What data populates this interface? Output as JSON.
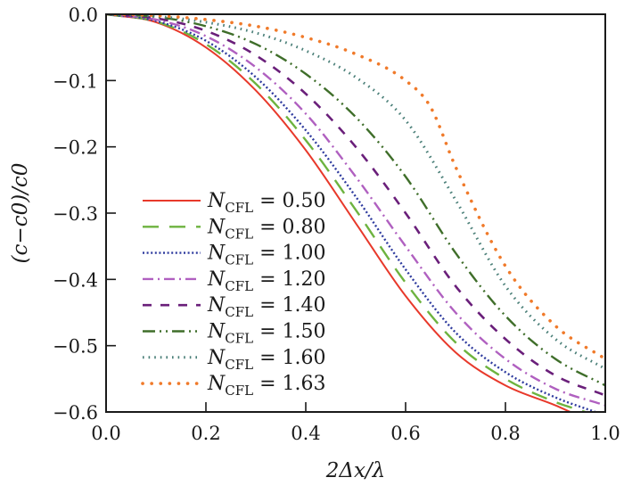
{
  "chart_data": {
    "type": "line",
    "title": "",
    "xlabel": "2Δx/λ",
    "ylabel": "(c−c0)/c0",
    "xlim": [
      0.0,
      1.0
    ],
    "ylim": [
      -0.6,
      0.0
    ],
    "grid": false,
    "legend_position": "center-left",
    "x_ticks": [
      "0.0",
      "0.2",
      "0.4",
      "0.6",
      "0.8",
      "1.0"
    ],
    "y_ticks": [
      "0.0",
      "−0.1",
      "−0.2",
      "−0.3",
      "−0.4",
      "−0.5",
      "−0.6"
    ],
    "x_tick_values": [
      0.0,
      0.2,
      0.4,
      0.6,
      0.8,
      1.0
    ],
    "y_tick_values": [
      0.0,
      -0.1,
      -0.2,
      -0.3,
      -0.4,
      -0.5,
      -0.6
    ],
    "legend_symbol": "N",
    "legend_subscript": "CFL",
    "series": [
      {
        "name": "N_CFL = 0.50",
        "value_label": "= 0.50",
        "color": "#e8392b",
        "dash": "solid",
        "x": [
          0,
          0.1,
          0.2,
          0.3,
          0.4,
          0.5,
          0.6,
          0.7,
          0.8,
          0.9,
          0.93
        ],
        "y": [
          0,
          -0.012,
          -0.05,
          -0.115,
          -0.205,
          -0.315,
          -0.425,
          -0.51,
          -0.56,
          -0.59,
          -0.6
        ]
      },
      {
        "name": "N_CFL = 0.80",
        "value_label": "= 0.80",
        "color": "#6db33f",
        "dash": "long-dash",
        "x": [
          0,
          0.1,
          0.2,
          0.3,
          0.4,
          0.5,
          0.6,
          0.7,
          0.8,
          0.9,
          0.96
        ],
        "y": [
          0,
          -0.011,
          -0.045,
          -0.105,
          -0.19,
          -0.295,
          -0.405,
          -0.495,
          -0.55,
          -0.585,
          -0.6
        ]
      },
      {
        "name": "N_CFL = 1.00",
        "value_label": "= 1.00",
        "color": "#2e3b9e",
        "dash": "dotted",
        "x": [
          0,
          0.1,
          0.2,
          0.3,
          0.4,
          0.5,
          0.6,
          0.7,
          0.8,
          0.9,
          0.98
        ],
        "y": [
          0,
          -0.01,
          -0.04,
          -0.095,
          -0.175,
          -0.275,
          -0.385,
          -0.48,
          -0.54,
          -0.578,
          -0.6
        ]
      },
      {
        "name": "N_CFL = 1.20",
        "value_label": "= 1.20",
        "color": "#b060c0",
        "dash": "dash-dot",
        "x": [
          0,
          0.1,
          0.2,
          0.3,
          0.4,
          0.5,
          0.6,
          0.7,
          0.8,
          0.9,
          1.0
        ],
        "y": [
          0,
          -0.008,
          -0.033,
          -0.08,
          -0.15,
          -0.245,
          -0.35,
          -0.45,
          -0.52,
          -0.565,
          -0.59
        ]
      },
      {
        "name": "N_CFL = 1.40",
        "value_label": "= 1.40",
        "color": "#6a1f7a",
        "dash": "dashed",
        "x": [
          0,
          0.1,
          0.2,
          0.3,
          0.4,
          0.5,
          0.6,
          0.7,
          0.8,
          0.9,
          1.0
        ],
        "y": [
          0,
          -0.006,
          -0.025,
          -0.062,
          -0.12,
          -0.2,
          -0.3,
          -0.41,
          -0.49,
          -0.545,
          -0.575
        ]
      },
      {
        "name": "N_CFL = 1.50",
        "value_label": "= 1.50",
        "color": "#3f6e2a",
        "dash": "dash-dot-dot",
        "x": [
          0,
          0.1,
          0.2,
          0.3,
          0.4,
          0.5,
          0.6,
          0.7,
          0.8,
          0.9,
          1.0
        ],
        "y": [
          0,
          -0.004,
          -0.018,
          -0.045,
          -0.09,
          -0.155,
          -0.245,
          -0.36,
          -0.455,
          -0.52,
          -0.56
        ]
      },
      {
        "name": "N_CFL = 1.60",
        "value_label": "= 1.60",
        "color": "#4a7f78",
        "dash": "fine-dots",
        "x": [
          0,
          0.1,
          0.2,
          0.3,
          0.4,
          0.5,
          0.6,
          0.7,
          0.8,
          0.9,
          1.0
        ],
        "y": [
          0,
          -0.003,
          -0.012,
          -0.028,
          -0.055,
          -0.095,
          -0.16,
          -0.28,
          -0.41,
          -0.49,
          -0.535
        ]
      },
      {
        "name": "N_CFL = 1.63",
        "value_label": "= 1.63",
        "color": "#f07a2a",
        "dash": "sparse-dots",
        "x": [
          0,
          0.1,
          0.2,
          0.3,
          0.4,
          0.5,
          0.6,
          0.65,
          0.7,
          0.8,
          0.9,
          1.0
        ],
        "y": [
          0,
          -0.002,
          -0.008,
          -0.018,
          -0.035,
          -0.06,
          -0.1,
          -0.14,
          -0.23,
          -0.38,
          -0.47,
          -0.52
        ]
      }
    ]
  }
}
